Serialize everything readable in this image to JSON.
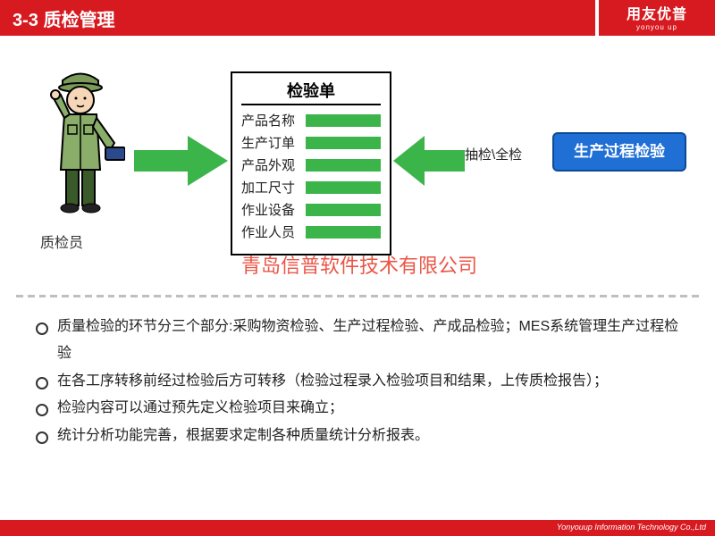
{
  "header": {
    "title": "3-3 质检管理",
    "logo": "用友优普",
    "logo_sub": "yonyou up"
  },
  "colors": {
    "red": "#d71920",
    "green": "#3bb44a",
    "blue": "#1f6fd4",
    "blue_border": "#0b4a99",
    "gray": "#bfbfbf"
  },
  "inspector_label": "质检员",
  "form": {
    "title": "检验单",
    "rows": [
      "产品名称",
      "生产订单",
      "产品外观",
      "加工尺寸",
      "作业设备",
      "作业人员"
    ]
  },
  "check_label": "抽检\\全检",
  "blue_button": "生产过程检验",
  "watermark": "青岛信普软件技术有限公司",
  "bullets": [
    "质量检验的环节分三个部分:采购物资检验、生产过程检验、产成品检验；MES系统管理生产过程检验",
    "在各工序转移前经过检验后方可转移（检验过程录入检验项目和结果，上传质检报告）；",
    "检验内容可以通过预先定义检验项目来确立；",
    "统计分析功能完善，根据要求定制各种质量统计分析报表。"
  ],
  "footer": "Yonyouup Information Technology Co.,Ltd"
}
